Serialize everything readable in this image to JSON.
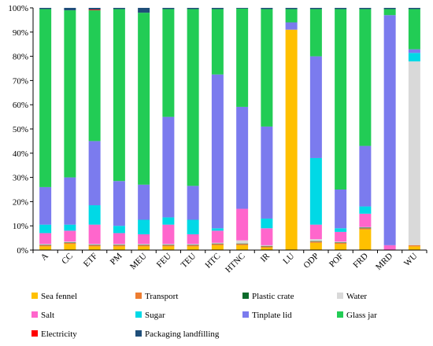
{
  "chart_data": {
    "type": "bar",
    "stacked": true,
    "normalized": true,
    "ylim": [
      0,
      100
    ],
    "yticks": [
      "0%",
      "10%",
      "20%",
      "30%",
      "40%",
      "50%",
      "60%",
      "70%",
      "80%",
      "90%",
      "100%"
    ],
    "categories": [
      "A",
      "CC",
      "ETF",
      "PM",
      "MEU",
      "FEU",
      "TEU",
      "HTC",
      "HTNC",
      "IR",
      "LU",
      "ODP",
      "POF",
      "FRD",
      "MRD",
      "WU"
    ],
    "grid": false,
    "legend_position": "bottom",
    "series": [
      {
        "name": "Sea fennel",
        "color": "#FFC000",
        "values": [
          1.5,
          2.5,
          1.5,
          1.5,
          1.5,
          1.5,
          1.5,
          2,
          2,
          1,
          91,
          3,
          2.5,
          8.5,
          0,
          1.5
        ]
      },
      {
        "name": "Transport",
        "color": "#ED7D31",
        "values": [
          0.5,
          0.5,
          0.5,
          0.5,
          0.5,
          0.5,
          0.5,
          0.5,
          0.5,
          0.5,
          0,
          0.5,
          0.5,
          0.5,
          0,
          0.5
        ]
      },
      {
        "name": "Plastic crate",
        "color": "#0B6B2B",
        "values": [
          0.2,
          0.2,
          0.2,
          0.2,
          0.2,
          0.2,
          0.2,
          0.2,
          0.2,
          0.2,
          0,
          0.2,
          0.2,
          0.3,
          0,
          0
        ]
      },
      {
        "name": "Water",
        "color": "#D9D9D9",
        "values": [
          0.3,
          0.3,
          0.3,
          0.3,
          0.3,
          0.3,
          0.3,
          0.3,
          1.3,
          0.3,
          0,
          0.8,
          0.3,
          0.2,
          0,
          75.5
        ]
      },
      {
        "name": "Salt",
        "color": "#FF66CC",
        "values": [
          4.5,
          4.5,
          8,
          4.5,
          4,
          8,
          4,
          5,
          13,
          7,
          0,
          6,
          4,
          5.5,
          2,
          0
        ]
      },
      {
        "name": "Sugar",
        "color": "#00D9E6",
        "values": [
          3.5,
          2.5,
          8,
          3,
          6,
          3,
          6,
          1,
          0,
          4,
          0,
          27.5,
          1.5,
          3,
          0,
          3.5
        ]
      },
      {
        "name": "Tinplate lid",
        "color": "#7B7BEE",
        "values": [
          15.5,
          19.5,
          26.5,
          18.5,
          14.5,
          41.5,
          14,
          63.5,
          42,
          38,
          3,
          42,
          16,
          25,
          95,
          1.5
        ]
      },
      {
        "name": "Glass jar",
        "color": "#22CC55",
        "values": [
          73.5,
          69,
          54,
          71,
          71,
          44.5,
          73,
          27,
          40.5,
          48.5,
          5.5,
          19.5,
          74.5,
          56.5,
          2.5,
          16.5
        ]
      },
      {
        "name": "Electricity",
        "color": "#FF0000",
        "values": [
          0,
          0,
          0.3,
          0,
          0,
          0,
          0,
          0,
          0,
          0,
          0,
          0,
          0,
          0,
          0,
          0
        ]
      },
      {
        "name": "Packaging landfilling",
        "color": "#1F4E79",
        "values": [
          0.5,
          1,
          0.7,
          0.5,
          2,
          0.5,
          0.5,
          0.5,
          0.3,
          0.5,
          0.5,
          0.5,
          0.5,
          0.5,
          0.5,
          0.5
        ]
      }
    ]
  }
}
